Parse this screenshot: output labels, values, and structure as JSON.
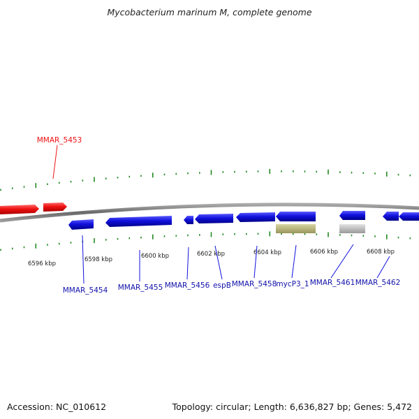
{
  "title": "Mycobacterium marinum M, complete genome",
  "colors": {
    "reverse_strand": "#ee1111",
    "forward_strand": "#1111dd",
    "rna_feature": "#b8b47a",
    "other_feature": "#bbbbbb",
    "tick": "#228822",
    "backbone": "#888888"
  },
  "scale_labels": [
    "6596 kbp",
    "6598 kbp",
    "6600 kbp",
    "6602 kbp",
    "6604 kbp",
    "6606 kbp",
    "6608 kbp"
  ],
  "gene_labels": [
    {
      "name": "MMAR_5453",
      "strand": "reverse"
    },
    {
      "name": "MMAR_5454",
      "strand": "forward"
    },
    {
      "name": "MMAR_5455",
      "strand": "forward"
    },
    {
      "name": "MMAR_5456",
      "strand": "forward"
    },
    {
      "name": "espB",
      "strand": "forward"
    },
    {
      "name": "MMAR_5458",
      "strand": "forward"
    },
    {
      "name": "mycP3_1",
      "strand": "forward"
    },
    {
      "name": "MMAR_5461",
      "strand": "forward"
    },
    {
      "name": "MMAR_5462",
      "strand": "forward"
    }
  ],
  "footer": {
    "accession": "Accession: NC_010612",
    "summary": "Topology: circular; Length: 6,636,827 bp; Genes: 5,472"
  }
}
